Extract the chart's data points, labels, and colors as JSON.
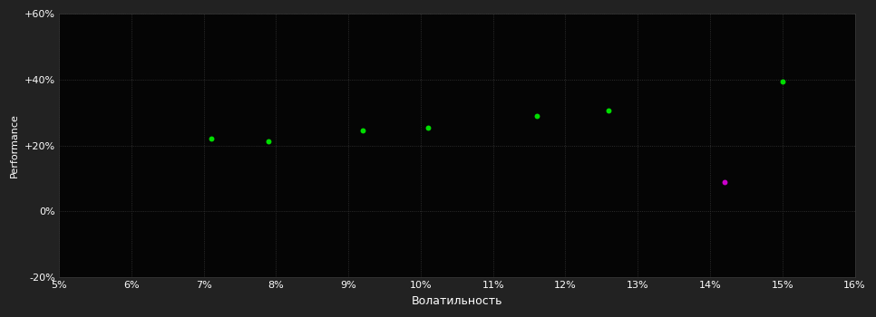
{
  "outer_bg_color": "#222222",
  "plot_bg_color": "#050505",
  "grid_color": "#383838",
  "text_color": "#ffffff",
  "xlabel": "Волатильность",
  "ylabel": "Performance",
  "xlim": [
    0.05,
    0.16
  ],
  "ylim": [
    -0.2,
    0.6
  ],
  "xticks": [
    0.05,
    0.06,
    0.07,
    0.08,
    0.09,
    0.1,
    0.11,
    0.12,
    0.13,
    0.14,
    0.15,
    0.16
  ],
  "yticks": [
    -0.2,
    0.0,
    0.2,
    0.4,
    0.6
  ],
  "ytick_labels": [
    "-20%",
    "0%",
    "+20%",
    "+40%",
    "+60%"
  ],
  "xtick_labels": [
    "5%",
    "6%",
    "7%",
    "8%",
    "9%",
    "10%",
    "11%",
    "12%",
    "13%",
    "14%",
    "15%",
    "16%"
  ],
  "green_points": [
    [
      0.071,
      0.222
    ],
    [
      0.079,
      0.213
    ],
    [
      0.092,
      0.245
    ],
    [
      0.101,
      0.255
    ],
    [
      0.116,
      0.29
    ],
    [
      0.126,
      0.305
    ],
    [
      0.15,
      0.395
    ]
  ],
  "magenta_points": [
    [
      0.142,
      0.09
    ]
  ],
  "green_color": "#00dd00",
  "magenta_color": "#cc00cc",
  "marker_size": 18,
  "grid_alpha": 1.0,
  "grid_linestyle": ":",
  "grid_linewidth": 0.6,
  "tick_fontsize": 8,
  "xlabel_fontsize": 9,
  "ylabel_fontsize": 8
}
